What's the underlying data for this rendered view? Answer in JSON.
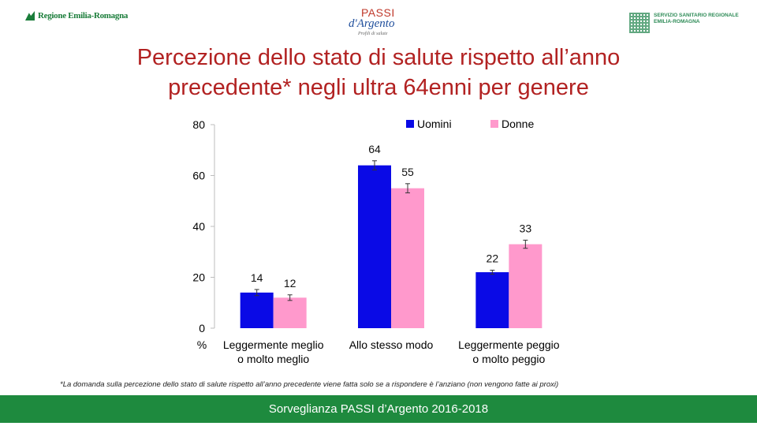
{
  "header": {
    "left_logo_text": "Regione Emilia-Romagna",
    "center_logo": {
      "line1": "PASSI",
      "line2": "d'Argento",
      "tagline": "Profili di salute"
    },
    "right_logo_text": {
      "line1": "SERVIZIO SANITARIO REGIONALE",
      "line2": "EMILIA-ROMAGNA"
    }
  },
  "title": {
    "line1": "Percezione dello stato di salute rispetto all’anno",
    "line2": "precedente* negli ultra 64enni per genere"
  },
  "chart_data": {
    "type": "bar",
    "categories": [
      {
        "line1": "Leggermente meglio",
        "line2": "o molto meglio"
      },
      {
        "line1": "Allo stesso modo",
        "line2": ""
      },
      {
        "line1": "Leggermente peggio",
        "line2": "o molto peggio"
      }
    ],
    "series": [
      {
        "name": "Uomini",
        "color": "#0a0ae6",
        "values": [
          14,
          64,
          22
        ],
        "error_low": [
          12.8,
          62.2,
          21.2
        ],
        "error_high": [
          15.2,
          65.8,
          22.8
        ]
      },
      {
        "name": "Donne",
        "color": "#ff99cc",
        "values": [
          12,
          55,
          33
        ],
        "error_low": [
          10.9,
          53.2,
          31.4
        ],
        "error_high": [
          13.1,
          56.8,
          34.6
        ]
      }
    ],
    "ylim": [
      0,
      80
    ],
    "yticks": [
      0,
      20,
      40,
      60,
      80
    ],
    "y_unit_label": "%",
    "data_labels": true,
    "legend_position": "top-right",
    "grid": false
  },
  "footnote": "*La domanda sulla percezione dello stato di salute rispetto all’anno precedente viene fatta solo se a rispondere è l’anziano (non vengono fatte ai proxi)",
  "footer": {
    "text": "Sorveglianza PASSI d’Argento 2016-2018",
    "color": "#1e8a3e"
  }
}
